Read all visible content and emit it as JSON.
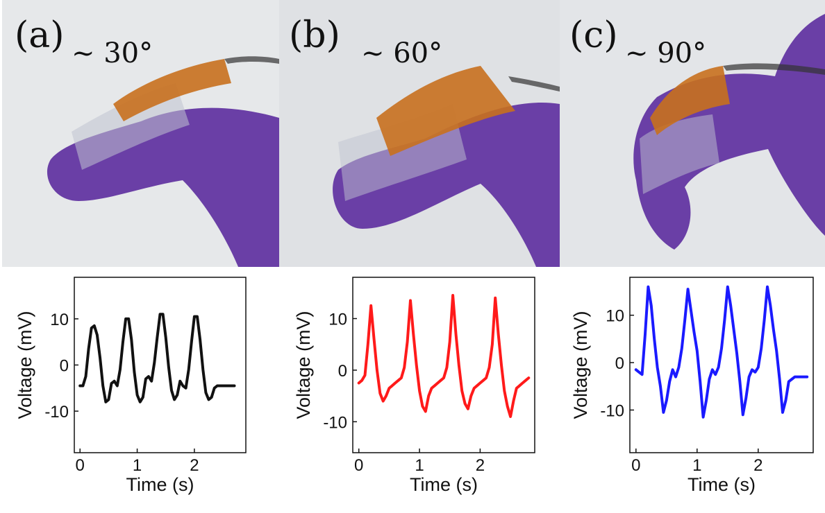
{
  "panels": [
    {
      "letter": "(a)",
      "angle": "~ 30°",
      "color": "#111111"
    },
    {
      "letter": "(b)",
      "angle": "~ 60°",
      "color": "#ff1a1a"
    },
    {
      "letter": "(c)",
      "angle": "~ 90°",
      "color": "#1a1aff"
    }
  ],
  "chart_data": [
    {
      "type": "line",
      "xlabel": "Time (s)",
      "ylabel": "Voltage (mV)",
      "xlim": [
        -0.1,
        2.9
      ],
      "ylim": [
        -19,
        19
      ],
      "xticks": [
        0,
        1,
        2
      ],
      "yticks": [
        10,
        0,
        -10
      ],
      "series": [
        {
          "x": [
            0.0,
            0.05,
            0.1,
            0.15,
            0.2,
            0.25,
            0.3,
            0.35,
            0.4,
            0.45,
            0.5,
            0.55,
            0.6,
            0.65,
            0.7,
            0.75,
            0.8,
            0.85,
            0.9,
            0.95,
            1.0,
            1.05,
            1.1,
            1.15,
            1.2,
            1.25,
            1.3,
            1.35,
            1.4,
            1.45,
            1.5,
            1.55,
            1.6,
            1.65,
            1.7,
            1.75,
            1.8,
            1.85,
            1.9,
            1.95,
            2.0,
            2.05,
            2.1,
            2.15,
            2.2,
            2.25,
            2.3,
            2.35,
            2.4,
            2.45,
            2.5,
            2.55,
            2.6,
            2.65,
            2.7
          ],
          "y": [
            -4.5,
            -4.5,
            -2.5,
            3.5,
            8.0,
            8.5,
            6.5,
            1.5,
            -4.5,
            -8.0,
            -7.5,
            -4.0,
            -3.5,
            -4.5,
            -1.0,
            5.0,
            10.0,
            10.0,
            5.5,
            -1.5,
            -6.5,
            -8.0,
            -7.0,
            -3.0,
            -2.5,
            -3.5,
            0.5,
            6.0,
            11.0,
            11.0,
            6.0,
            -0.5,
            -5.5,
            -7.5,
            -6.5,
            -3.5,
            -4.5,
            -5.0,
            -1.0,
            5.0,
            10.5,
            10.5,
            5.5,
            -1.0,
            -6.0,
            -7.5,
            -7.0,
            -5.0,
            -4.5,
            -4.5,
            -4.5,
            -4.5,
            -4.5,
            -4.5,
            -4.5
          ]
        }
      ]
    },
    {
      "type": "line",
      "xlabel": "Time (s)",
      "ylabel": "Voltage (mV)",
      "xlim": [
        -0.1,
        2.9
      ],
      "ylim": [
        -16,
        18
      ],
      "xticks": [
        0,
        1,
        2
      ],
      "yticks": [
        10,
        0,
        -10
      ],
      "series": [
        {
          "x": [
            0.0,
            0.05,
            0.1,
            0.15,
            0.2,
            0.25,
            0.3,
            0.35,
            0.4,
            0.45,
            0.5,
            0.55,
            0.6,
            0.65,
            0.7,
            0.75,
            0.8,
            0.85,
            0.9,
            0.95,
            1.0,
            1.05,
            1.1,
            1.15,
            1.2,
            1.25,
            1.3,
            1.35,
            1.4,
            1.45,
            1.5,
            1.55,
            1.6,
            1.65,
            1.7,
            1.75,
            1.8,
            1.85,
            1.9,
            1.95,
            2.0,
            2.05,
            2.1,
            2.15,
            2.2,
            2.25,
            2.3,
            2.35,
            2.4,
            2.45,
            2.5,
            2.55,
            2.6,
            2.65,
            2.7,
            2.75,
            2.8
          ],
          "y": [
            -2.5,
            -2.0,
            -1.0,
            5.0,
            12.5,
            6.0,
            0.0,
            -4.5,
            -6.0,
            -5.0,
            -3.5,
            -3.0,
            -2.5,
            -2.0,
            -1.5,
            0.5,
            5.5,
            13.5,
            7.0,
            1.0,
            -4.0,
            -7.0,
            -8.0,
            -5.0,
            -3.5,
            -3.0,
            -2.5,
            -2.0,
            -1.5,
            0.5,
            5.5,
            14.5,
            7.0,
            1.0,
            -4.0,
            -6.5,
            -7.5,
            -5.0,
            -3.5,
            -3.0,
            -2.5,
            -2.0,
            -1.5,
            0.5,
            5.0,
            14.0,
            7.0,
            1.0,
            -4.0,
            -7.0,
            -9.0,
            -6.0,
            -3.5,
            -3.0,
            -2.5,
            -2.0,
            -1.5
          ]
        }
      ]
    },
    {
      "type": "line",
      "xlabel": "Time (s)",
      "ylabel": "Voltage (mV)",
      "xlim": [
        -0.1,
        2.9
      ],
      "ylim": [
        -19,
        18
      ],
      "xticks": [
        0,
        1,
        2
      ],
      "yticks": [
        10,
        0,
        -10
      ],
      "series": [
        {
          "x": [
            0.0,
            0.05,
            0.1,
            0.15,
            0.2,
            0.25,
            0.3,
            0.35,
            0.4,
            0.45,
            0.5,
            0.55,
            0.6,
            0.65,
            0.7,
            0.75,
            0.8,
            0.85,
            0.9,
            0.95,
            1.0,
            1.05,
            1.1,
            1.15,
            1.2,
            1.25,
            1.3,
            1.35,
            1.4,
            1.45,
            1.5,
            1.55,
            1.6,
            1.65,
            1.7,
            1.75,
            1.8,
            1.85,
            1.9,
            1.95,
            2.0,
            2.05,
            2.1,
            2.15,
            2.2,
            2.25,
            2.3,
            2.35,
            2.4,
            2.45,
            2.5,
            2.55,
            2.6,
            2.65,
            2.7,
            2.75,
            2.8
          ],
          "y": [
            -1.5,
            -2.0,
            -2.5,
            6.0,
            16.0,
            12.0,
            5.0,
            -1.0,
            -5.0,
            -10.5,
            -8.0,
            -4.0,
            -1.5,
            -3.0,
            -1.0,
            3.0,
            9.0,
            15.5,
            11.0,
            6.5,
            2.5,
            -4.0,
            -11.5,
            -8.0,
            -3.5,
            -1.5,
            -2.5,
            -1.0,
            3.0,
            9.0,
            16.0,
            12.0,
            7.0,
            2.0,
            -4.0,
            -11.0,
            -7.5,
            -3.0,
            -1.5,
            -2.0,
            -1.0,
            3.0,
            9.0,
            16.0,
            12.0,
            7.0,
            2.5,
            -3.5,
            -10.5,
            -8.0,
            -4.0,
            -3.5,
            -3.0,
            -3.0,
            -3.0,
            -3.0,
            -3.0
          ]
        }
      ]
    }
  ]
}
